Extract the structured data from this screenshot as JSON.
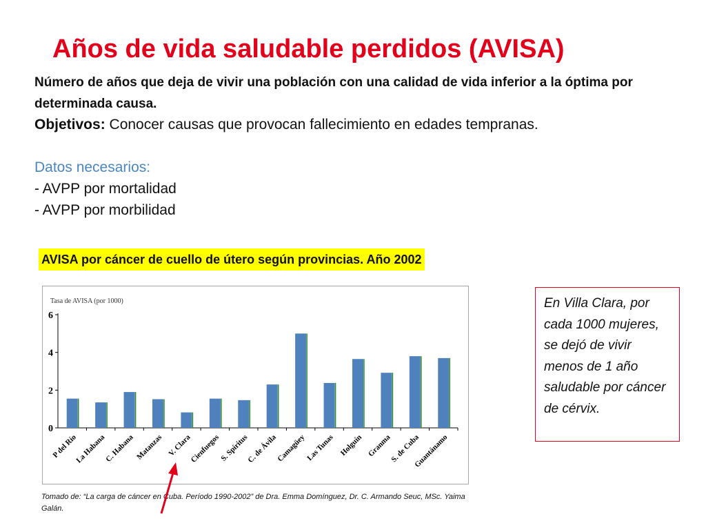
{
  "slide": {
    "title": "Años de vida saludable perdidos (AVISA)",
    "definition": "Número de años que deja de vivir una población con una calidad de vida inferior a la óptima por determinada causa.",
    "objectives_label": "Objetivos:",
    "objectives_text": " Conocer causas que provocan fallecimiento en edades tempranas.",
    "required_heading": "Datos necesarios:",
    "required_items": [
      "- AVPP por mortalidad",
      "- AVPP por morbilidad"
    ],
    "chart_caption": "AVISA por cáncer de cuello de útero según provincias. Año 2002",
    "source_note": "Tomado de: “La carga de cáncer en Cuba. Período 1990-2002” de   Dra. Emma Domínguez, Dr. C. Armando Seuc, MSc. Yaima Galán.",
    "note_box": "En Villa Clara, por cada 1000 mujeres, se dejó de vivir menos de 1 año saludable por cáncer de cérvix.",
    "colors": {
      "title": "#e3001b",
      "highlight": "#ffff00",
      "heading_blue": "#4a86c5",
      "bar_fill": "#4f81bd",
      "bar_edge": "#2e8b2e",
      "arrow": "#e3001b"
    }
  },
  "chart_data": {
    "type": "bar",
    "title": "",
    "ylabel": "Tasa de AVISA (por 1000)",
    "xlabel": "",
    "categories": [
      "P del Río",
      "La Habana",
      "C. Habana",
      "Matanzas",
      "V. Clara",
      "Cienfuegos",
      "S. Spíritus",
      "C. de Ávila",
      "Camagüey",
      "Las Tunas",
      "Holguín",
      "Granma",
      "S. de Cuba",
      "Guantánamo"
    ],
    "series": [
      {
        "values": [
          1.55,
          1.35,
          1.9,
          1.52,
          0.82,
          1.55,
          1.47,
          2.3,
          5.0,
          2.38,
          3.65,
          2.92,
          3.8,
          3.7
        ]
      }
    ],
    "ylim": [
      0,
      6
    ],
    "yticks": [
      0,
      2,
      4,
      6
    ],
    "grid": false,
    "legend": "none",
    "highlighted_category": "V. Clara"
  }
}
